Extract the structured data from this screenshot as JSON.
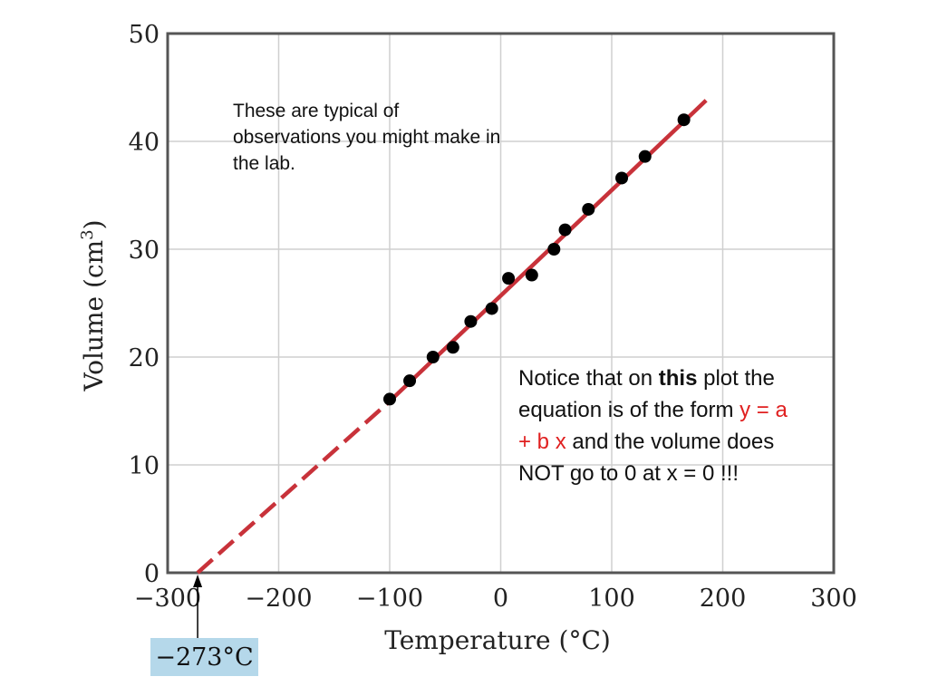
{
  "chart_data": {
    "type": "scatter",
    "xlabel": "Temperature (°C)",
    "ylabel": "Volume (cm",
    "ylabel_sup": "3",
    "ylabel_end": ")",
    "xlim": [
      -300,
      300
    ],
    "ylim": [
      0,
      50
    ],
    "x_ticks": [
      -300,
      -200,
      -100,
      0,
      100,
      200,
      300
    ],
    "x_tick_labels": [
      "−300",
      "−200",
      "−100",
      "0",
      "100",
      "200",
      "300"
    ],
    "y_ticks": [
      0,
      10,
      20,
      30,
      40,
      50
    ],
    "y_tick_labels": [
      "0",
      "10",
      "20",
      "30",
      "40",
      "50"
    ],
    "grid": true,
    "points": {
      "x": [
        -100,
        -82,
        -61,
        -43,
        -27,
        -8,
        7,
        28,
        48,
        58,
        79,
        109,
        130,
        165
      ],
      "y": [
        16.1,
        17.8,
        20.0,
        20.9,
        23.3,
        24.5,
        27.3,
        27.6,
        30.0,
        31.8,
        33.7,
        36.6,
        38.6,
        42.0
      ]
    },
    "fit_line": {
      "color": "#c8323a",
      "solid_from": [
        -100,
        15.9
      ],
      "solid_to": [
        185,
        43.8
      ],
      "dashed_from": [
        -273,
        0
      ]
    }
  },
  "annotation_1": "These are typical of observations you might make in the lab.",
  "annotation_2": {
    "part1": "Notice that on ",
    "bold": "this",
    "part2": " plot the equation is of the form ",
    "equation": "y = a + b x",
    "part3": " and the volume does NOT go to 0 at x = 0 !!!",
    "equation_color": "#e02020"
  },
  "callout_label": "−273°C"
}
